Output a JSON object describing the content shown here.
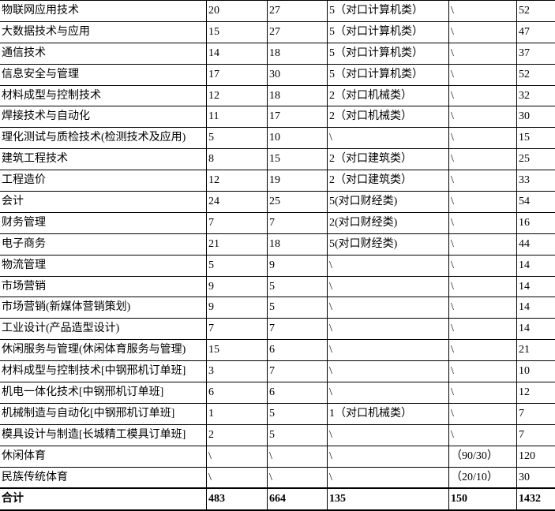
{
  "colors": {
    "text": "#000000",
    "border": "#000000",
    "background": "#ffffff"
  },
  "table": {
    "description": "enrollment-plan-table-fragment-no-header-visible",
    "rows": [
      {
        "cells": [
          "物联网应用技术",
          "20",
          "27",
          "5（对口计算机类）",
          "\\",
          "52"
        ]
      },
      {
        "cells": [
          "大数据技术与应用",
          "15",
          "27",
          "5（对口计算机类）",
          "\\",
          "47"
        ]
      },
      {
        "cells": [
          "通信技术",
          "14",
          "18",
          "5（对口计算机类）",
          "\\",
          "37"
        ]
      },
      {
        "cells": [
          "信息安全与管理",
          "17",
          "30",
          "5（对口计算机类）",
          "\\",
          "52"
        ]
      },
      {
        "cells": [
          "材料成型与控制技术",
          "12",
          "18",
          "2（对口机械类）",
          "\\",
          "32"
        ]
      },
      {
        "cells": [
          "焊接技术与自动化",
          "11",
          "17",
          "2（对口机械类）",
          "\\",
          "30"
        ]
      },
      {
        "cells": [
          "理化测试与质检技术(检测技术及应用)",
          "5",
          "10",
          "\\",
          "\\",
          "15"
        ]
      },
      {
        "cells": [
          "建筑工程技术",
          "8",
          "15",
          "2（对口建筑类）",
          "\\",
          "25"
        ]
      },
      {
        "cells": [
          "工程造价",
          "12",
          "19",
          "2（对口建筑类）",
          "\\",
          "33"
        ]
      },
      {
        "cells": [
          "会计",
          "24",
          "25",
          "5(对口财经类)",
          "\\",
          "54"
        ]
      },
      {
        "cells": [
          "财务管理",
          "7",
          "7",
          "2(对口财经类)",
          "\\",
          "16"
        ]
      },
      {
        "cells": [
          "电子商务",
          "21",
          "18",
          "5(对口财经类)",
          "\\",
          "44"
        ]
      },
      {
        "cells": [
          "物流管理",
          "5",
          "9",
          "\\",
          "\\",
          "14"
        ]
      },
      {
        "cells": [
          "市场营销",
          "9",
          "5",
          "\\",
          "\\",
          "14"
        ]
      },
      {
        "cells": [
          "市场营销(新媒体营销策划)",
          "9",
          "5",
          "\\",
          "\\",
          "14"
        ]
      },
      {
        "cells": [
          "工业设计(产品造型设计)",
          "7",
          "7",
          "\\",
          "\\",
          "14"
        ]
      },
      {
        "cells": [
          "休闲服务与管理(休闲体育服务与管理)",
          "15",
          "6",
          "\\",
          "\\",
          "21"
        ]
      },
      {
        "cells": [
          "材料成型与控制技术[中钢邢机订单班]",
          "3",
          "7",
          "\\",
          "\\",
          "10"
        ]
      },
      {
        "cells": [
          "机电一体化技术[中钢邢机订单班]",
          "6",
          "6",
          "\\",
          "\\",
          "12"
        ]
      },
      {
        "cells": [
          "机械制造与自动化[中钢邢机订单班]",
          "1",
          "5",
          "1（对口机械类）",
          "\\",
          "7"
        ]
      },
      {
        "cells": [
          "模具设计与制造[长城精工模具订单班]",
          "2",
          "5",
          "\\",
          "\\",
          "7"
        ]
      },
      {
        "cells": [
          "休闲体育",
          "\\",
          "\\",
          "\\",
          "（90/30）",
          "120"
        ]
      },
      {
        "cells": [
          "民族传统体育",
          "\\",
          "\\",
          "\\",
          "（20/10）",
          "30"
        ]
      },
      {
        "cells": [
          "合计",
          "483",
          "664",
          "135",
          "150",
          "1432"
        ],
        "total": true
      }
    ]
  }
}
